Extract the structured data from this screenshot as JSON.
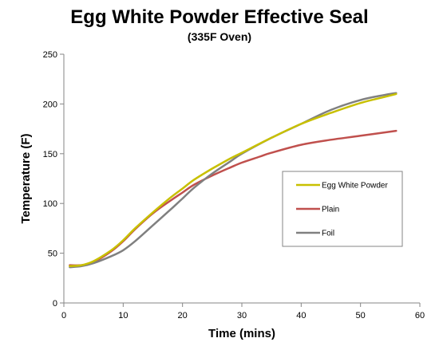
{
  "chart_data": {
    "type": "line",
    "title": "Egg White Powder Effective Seal",
    "subtitle": "(335F Oven)",
    "xlabel": "Time (mins)",
    "ylabel": "Temperature (F)",
    "xlim": [
      0,
      60
    ],
    "ylim": [
      0,
      250
    ],
    "xticks": [
      0,
      10,
      20,
      30,
      40,
      50,
      60
    ],
    "yticks": [
      0,
      50,
      100,
      150,
      200,
      250
    ],
    "grid": false,
    "legend_position": "inside-right",
    "series": [
      {
        "name": "Egg White Powder",
        "color": "#c8c000",
        "x": [
          1,
          3,
          5,
          8,
          10,
          12,
          15,
          18,
          20,
          22,
          25,
          28,
          30,
          35,
          40,
          45,
          50,
          54,
          56
        ],
        "y": [
          37,
          38,
          42,
          53,
          63,
          75,
          91,
          106,
          115,
          124,
          135,
          145,
          151,
          166,
          180,
          191,
          201,
          207,
          210
        ]
      },
      {
        "name": "Plain",
        "color": "#c0504d",
        "x": [
          1,
          3,
          5,
          8,
          10,
          12,
          15,
          18,
          20,
          22,
          25,
          28,
          30,
          33,
          35,
          40,
          45,
          50,
          56
        ],
        "y": [
          38,
          38,
          41,
          52,
          62,
          74,
          90,
          103,
          111,
          119,
          128,
          136,
          141,
          147,
          151,
          159,
          164,
          168,
          173
        ]
      },
      {
        "name": "Foil",
        "color": "#808080",
        "x": [
          1,
          3,
          5,
          8,
          10,
          12,
          15,
          18,
          20,
          22,
          25,
          28,
          30,
          35,
          40,
          45,
          50,
          54,
          56
        ],
        "y": [
          36,
          37,
          40,
          47,
          53,
          62,
          78,
          94,
          105,
          116,
          130,
          142,
          150,
          166,
          180,
          194,
          204,
          209,
          211
        ]
      }
    ]
  }
}
